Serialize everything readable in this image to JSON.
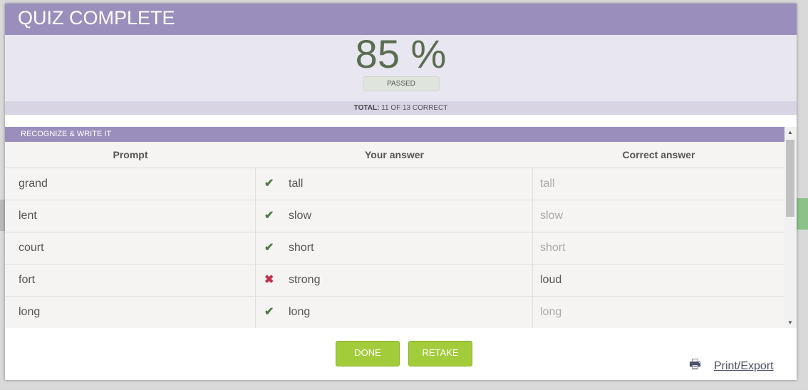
{
  "title": "QUIZ COMPLETE",
  "score": "85 %",
  "status": "PASSED",
  "total_label": "TOTAL:",
  "total_value": "11 OF 13 CORRECT",
  "section": "RECOGNIZE & WRITE IT",
  "columns": [
    "Prompt",
    "Your answer",
    "Correct answer"
  ],
  "rows": [
    {
      "prompt": "grand",
      "answer": "tall",
      "correct": "tall",
      "result": "correct"
    },
    {
      "prompt": "lent",
      "answer": "slow",
      "correct": "slow",
      "result": "correct"
    },
    {
      "prompt": "court",
      "answer": "short",
      "correct": "short",
      "result": "correct"
    },
    {
      "prompt": "fort",
      "answer": "strong",
      "correct": "loud",
      "result": "incorrect"
    },
    {
      "prompt": "long",
      "answer": "long",
      "correct": "long",
      "result": "correct"
    }
  ],
  "icons": {
    "correct": "✔",
    "incorrect": "✖"
  },
  "buttons": {
    "done": "DONE",
    "retake": "RETAKE"
  },
  "print_label": "Print/Export",
  "colors": {
    "header": "#9a8fbc",
    "button": "#a3cc3a",
    "score": "#5a6e4f"
  }
}
